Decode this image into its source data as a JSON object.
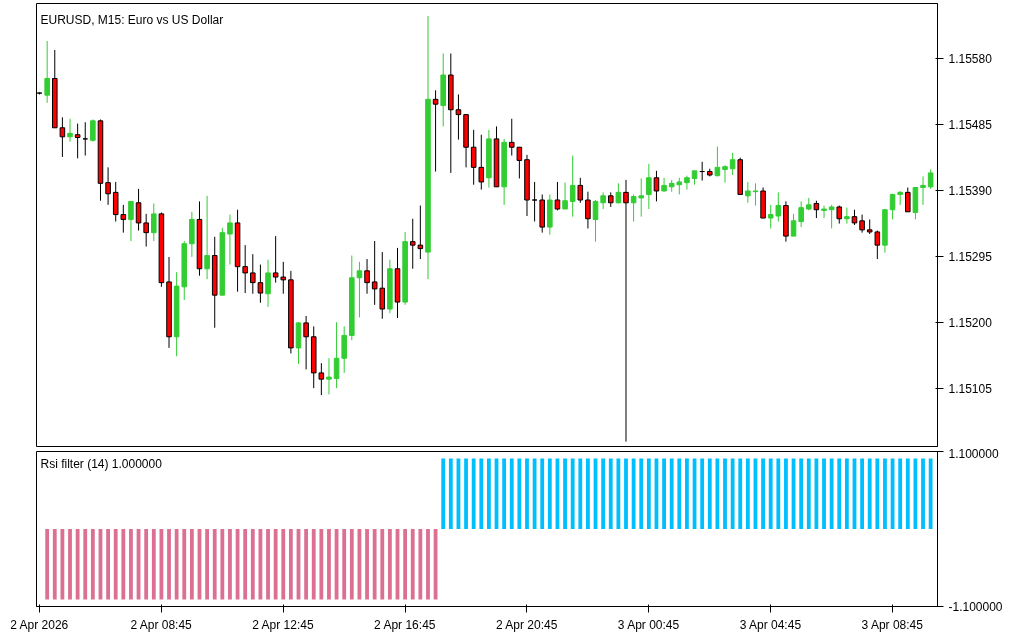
{
  "chart_data": [
    {
      "type": "candlestick",
      "title": "EURUSD, M15:  Euro vs US Dollar",
      "categories": [
        null,
        null,
        null,
        null,
        null,
        null,
        null,
        null,
        null,
        null,
        null,
        null,
        null,
        null,
        null,
        null,
        null,
        null,
        null,
        null,
        null,
        null,
        null,
        null,
        null,
        null,
        null,
        null,
        null,
        null,
        null,
        null,
        null,
        null,
        null,
        null,
        null,
        null,
        null,
        null,
        null,
        null,
        null,
        null,
        null,
        null,
        null,
        null,
        null,
        null,
        null,
        null,
        null,
        null,
        null,
        null,
        null,
        null,
        null,
        null,
        null,
        null,
        null,
        null,
        null,
        null,
        null,
        null,
        null,
        null,
        null,
        null,
        null,
        null,
        null,
        null,
        null,
        null,
        null,
        null,
        null,
        null,
        null,
        null,
        null,
        null,
        null,
        null,
        null,
        null,
        null,
        null,
        null,
        null,
        null,
        null,
        null,
        null,
        null,
        null,
        null,
        null,
        null,
        null,
        null,
        null,
        null,
        null,
        null,
        null,
        null,
        null,
        null,
        null,
        null,
        null,
        null,
        null
      ],
      "ohlc": [
        [
          1.1553,
          1.15531,
          1.15528,
          1.1553
        ],
        [
          1.15527,
          1.15605,
          1.15516,
          1.15551
        ],
        [
          1.15551,
          1.15592,
          1.1548,
          1.1548
        ],
        [
          1.1548,
          1.15495,
          1.15438,
          1.15467
        ],
        [
          1.15467,
          1.15493,
          1.1546,
          1.15472
        ],
        [
          1.1547,
          1.15486,
          1.15436,
          1.15466
        ],
        [
          1.15464,
          1.15488,
          1.1544,
          1.15464
        ],
        [
          1.15462,
          1.15492,
          1.1546,
          1.1549
        ],
        [
          1.1549,
          1.15492,
          1.15375,
          1.154
        ],
        [
          1.15401,
          1.15423,
          1.15369,
          1.15385
        ],
        [
          1.15387,
          1.15402,
          1.15345,
          1.15355
        ],
        [
          1.15355,
          1.15369,
          1.15329,
          1.15348
        ],
        [
          1.15348,
          1.15374,
          1.15317,
          1.15374
        ],
        [
          1.15372,
          1.15392,
          1.15332,
          1.15343
        ],
        [
          1.15343,
          1.15356,
          1.15309,
          1.15329
        ],
        [
          1.15329,
          1.15371,
          1.15317,
          1.15356
        ],
        [
          1.15356,
          1.15358,
          1.15251,
          1.15257
        ],
        [
          1.15258,
          1.15294,
          1.15163,
          1.15179
        ],
        [
          1.15179,
          1.15272,
          1.15151,
          1.15252
        ],
        [
          1.15251,
          1.15317,
          1.15232,
          1.15313
        ],
        [
          1.15313,
          1.15359,
          1.15294,
          1.15348
        ],
        [
          1.15348,
          1.15374,
          1.15267,
          1.15277
        ],
        [
          1.15277,
          1.15382,
          1.15262,
          1.15296
        ],
        [
          1.15296,
          1.15323,
          1.15192,
          1.15239
        ],
        [
          1.15239,
          1.15336,
          1.15239,
          1.15329
        ],
        [
          1.15327,
          1.15355,
          1.15283,
          1.15343
        ],
        [
          1.15343,
          1.15362,
          1.15244,
          1.1528
        ],
        [
          1.1528,
          1.15311,
          1.15242,
          1.15271
        ],
        [
          1.15271,
          1.15298,
          1.15241,
          1.15257
        ],
        [
          1.15257,
          1.15283,
          1.15228,
          1.15242
        ],
        [
          1.15241,
          1.1529,
          1.15222,
          1.15271
        ],
        [
          1.15271,
          1.15324,
          1.15257,
          1.15265
        ],
        [
          1.15265,
          1.15287,
          1.15241,
          1.15261
        ],
        [
          1.15261,
          1.15274,
          1.15155,
          1.15163
        ],
        [
          1.15163,
          1.152,
          1.1514,
          1.15199
        ],
        [
          1.15199,
          1.15209,
          1.15132,
          1.15179
        ],
        [
          1.15179,
          1.15194,
          1.15105,
          1.15127
        ],
        [
          1.15127,
          1.15141,
          1.15095,
          1.15118
        ],
        [
          1.15118,
          1.15148,
          1.15096,
          1.15121
        ],
        [
          1.15119,
          1.152,
          1.15105,
          1.15148
        ],
        [
          1.15148,
          1.15194,
          1.15127,
          1.15181
        ],
        [
          1.15181,
          1.15296,
          1.15174,
          1.15264
        ],
        [
          1.15264,
          1.15287,
          1.15207,
          1.15274
        ],
        [
          1.15274,
          1.15291,
          1.15241,
          1.15257
        ],
        [
          1.15258,
          1.15317,
          1.15225,
          1.15248
        ],
        [
          1.15249,
          1.15301,
          1.15205,
          1.15219
        ],
        [
          1.15219,
          1.1529,
          1.15213,
          1.15277
        ],
        [
          1.15277,
          1.15307,
          1.15206,
          1.15229
        ],
        [
          1.15229,
          1.1533,
          1.15225,
          1.15316
        ],
        [
          1.15316,
          1.15349,
          1.15277,
          1.15311
        ],
        [
          1.15311,
          1.15368,
          1.15291,
          1.15306
        ],
        [
          1.15301,
          1.15641,
          1.15262,
          1.15521
        ],
        [
          1.15521,
          1.15534,
          1.15417,
          1.15514
        ],
        [
          1.15512,
          1.15587,
          1.15482,
          1.15556
        ],
        [
          1.15556,
          1.15587,
          1.15415,
          1.15506
        ],
        [
          1.15506,
          1.15528,
          1.15463,
          1.15499
        ],
        [
          1.15499,
          1.15499,
          1.15423,
          1.15452
        ],
        [
          1.15452,
          1.15477,
          1.15398,
          1.15423
        ],
        [
          1.15423,
          1.1547,
          1.15391,
          1.15402
        ],
        [
          1.15408,
          1.15477,
          1.15394,
          1.15464
        ],
        [
          1.15464,
          1.15482,
          1.15395,
          1.15395
        ],
        [
          1.15395,
          1.15464,
          1.15369,
          1.15459
        ],
        [
          1.15459,
          1.15493,
          1.1544,
          1.15452
        ],
        [
          1.15452,
          1.15452,
          1.15407,
          1.15433
        ],
        [
          1.15434,
          1.15441,
          1.15353,
          1.15376
        ],
        [
          1.15376,
          1.15402,
          1.15345,
          1.15376
        ],
        [
          1.15376,
          1.15384,
          1.15329,
          1.15337
        ],
        [
          1.15337,
          1.15384,
          1.15326,
          1.15376
        ],
        [
          1.15376,
          1.15402,
          1.15361,
          1.15363
        ],
        [
          1.15363,
          1.15401,
          1.15363,
          1.15375
        ],
        [
          1.15374,
          1.1544,
          1.15352,
          1.15397
        ],
        [
          1.15397,
          1.15408,
          1.15372,
          1.15376
        ],
        [
          1.15376,
          1.15388,
          1.15335,
          1.15349
        ],
        [
          1.15348,
          1.15376,
          1.15316,
          1.15374
        ],
        [
          1.15372,
          1.15387,
          1.15363,
          1.15382
        ],
        [
          1.15382,
          1.15387,
          1.15366,
          1.15372
        ],
        [
          1.15372,
          1.154,
          1.15371,
          1.15387
        ],
        [
          1.15387,
          1.15405,
          1.15028,
          1.15372
        ],
        [
          1.15372,
          1.15384,
          1.15345,
          1.15381
        ],
        [
          1.15379,
          1.15407,
          1.15352,
          1.15382
        ],
        [
          1.15384,
          1.15428,
          1.15363,
          1.15408
        ],
        [
          1.15408,
          1.15418,
          1.15374,
          1.15389
        ],
        [
          1.15389,
          1.15408,
          1.15388,
          1.15397
        ],
        [
          1.15395,
          1.15405,
          1.15388,
          1.154
        ],
        [
          1.15398,
          1.15408,
          1.15384,
          1.15402
        ],
        [
          1.15401,
          1.15411,
          1.15391,
          1.15408
        ],
        [
          1.15407,
          1.15418,
          1.15398,
          1.15418
        ],
        [
          1.15417,
          1.15431,
          1.15404,
          1.15417
        ],
        [
          1.15417,
          1.15421,
          1.1541,
          1.15412
        ],
        [
          1.15411,
          1.15453,
          1.1541,
          1.15423
        ],
        [
          1.1542,
          1.15426,
          1.15401,
          1.15424
        ],
        [
          1.15421,
          1.15444,
          1.15412,
          1.15434
        ],
        [
          1.15434,
          1.15437,
          1.15384,
          1.15384
        ],
        [
          1.15382,
          1.15402,
          1.15372,
          1.15389
        ],
        [
          1.15388,
          1.154,
          1.15368,
          1.15389
        ],
        [
          1.15389,
          1.15394,
          1.1535,
          1.1535
        ],
        [
          1.1535,
          1.15369,
          1.15335,
          1.15355
        ],
        [
          1.15353,
          1.15387,
          1.15345,
          1.15368
        ],
        [
          1.15368,
          1.15374,
          1.15316,
          1.15324
        ],
        [
          1.15324,
          1.15356,
          1.15324,
          1.15346
        ],
        [
          1.15345,
          1.15374,
          1.15337,
          1.15365
        ],
        [
          1.15363,
          1.15379,
          1.15361,
          1.15369
        ],
        [
          1.15371,
          1.15375,
          1.1535,
          1.15362
        ],
        [
          1.15361,
          1.15368,
          1.1535,
          1.15363
        ],
        [
          1.15362,
          1.15369,
          1.15335,
          1.15366
        ],
        [
          1.15366,
          1.15368,
          1.15342,
          1.15349
        ],
        [
          1.15349,
          1.15365,
          1.15342,
          1.15352
        ],
        [
          1.15352,
          1.15362,
          1.1534,
          1.15343
        ],
        [
          1.15346,
          1.15355,
          1.15329,
          1.15333
        ],
        [
          1.15333,
          1.15348,
          1.15327,
          1.1533
        ],
        [
          1.1533,
          1.15332,
          1.15291,
          1.15311
        ],
        [
          1.15311,
          1.15363,
          1.153,
          1.15362
        ],
        [
          1.15362,
          1.15385,
          1.15348,
          1.15384
        ],
        [
          1.15384,
          1.15389,
          1.15369,
          1.15387
        ],
        [
          1.15387,
          1.15394,
          1.15359,
          1.15359
        ],
        [
          1.15358,
          1.15394,
          1.15348,
          1.15394
        ],
        [
          1.15394,
          1.1541,
          1.15369,
          1.15397
        ],
        [
          1.15395,
          1.1542,
          1.15392,
          1.15415
        ]
      ],
      "colors": [
        "#000000",
        "#32cd32",
        "#ff0000",
        "#ff0000",
        "#32cd32",
        "#ff0000",
        "#000000",
        "#32cd32",
        "#ff0000",
        "#ff0000",
        "#ff0000",
        "#ff0000",
        "#32cd32",
        "#ff0000",
        "#ff0000",
        "#32cd32",
        "#ff0000",
        "#ff0000",
        "#32cd32",
        "#32cd32",
        "#32cd32",
        "#ff0000",
        "#32cd32",
        "#ff0000",
        "#32cd32",
        "#32cd32",
        "#ff0000",
        "#ff0000",
        "#ff0000",
        "#ff0000",
        "#32cd32",
        "#ff0000",
        "#ff0000",
        "#ff0000",
        "#32cd32",
        "#ff0000",
        "#ff0000",
        "#ff0000",
        "#32cd32",
        "#32cd32",
        "#32cd32",
        "#32cd32",
        "#32cd32",
        "#ff0000",
        "#ff0000",
        "#ff0000",
        "#32cd32",
        "#ff0000",
        "#32cd32",
        "#ff0000",
        "#ff0000",
        "#32cd32",
        "#ff0000",
        "#32cd32",
        "#ff0000",
        "#ff0000",
        "#ff0000",
        "#ff0000",
        "#ff0000",
        "#32cd32",
        "#ff0000",
        "#32cd32",
        "#ff0000",
        "#ff0000",
        "#ff0000",
        "#000000",
        "#ff0000",
        "#32cd32",
        "#ff0000",
        "#32cd32",
        "#32cd32",
        "#ff0000",
        "#ff0000",
        "#32cd32",
        "#32cd32",
        "#ff0000",
        "#32cd32",
        "#ff0000",
        "#32cd32",
        "#32cd32",
        "#32cd32",
        "#ff0000",
        "#32cd32",
        "#32cd32",
        "#32cd32",
        "#32cd32",
        "#32cd32",
        "#000000",
        "#ff0000",
        "#32cd32",
        "#32cd32",
        "#32cd32",
        "#ff0000",
        "#32cd32",
        "#32cd32",
        "#ff0000",
        "#32cd32",
        "#32cd32",
        "#ff0000",
        "#32cd32",
        "#32cd32",
        "#32cd32",
        "#ff0000",
        "#32cd32",
        "#32cd32",
        "#ff0000",
        "#32cd32",
        "#ff0000",
        "#ff0000",
        "#ff0000",
        "#ff0000",
        "#32cd32",
        "#32cd32",
        "#32cd32",
        "#ff0000",
        "#32cd32",
        "#32cd32",
        "#32cd32"
      ],
      "ylim": [
        1.15021,
        1.15659
      ],
      "yticks": [
        {
          "value": 1.15105,
          "label": "1.15105"
        },
        {
          "value": 1.152,
          "label": "1.15200"
        },
        {
          "value": 1.15295,
          "label": "1.15295"
        },
        {
          "value": 1.1539,
          "label": "1.15390"
        },
        {
          "value": 1.15485,
          "label": "1.15485"
        },
        {
          "value": 1.1558,
          "label": "1.15580"
        }
      ],
      "tick_labels": "y"
    },
    {
      "type": "bar",
      "title": "Rsi filter (14) 1.000000",
      "categories": [
        "2 Apr 2026",
        null,
        null,
        null,
        null,
        null,
        null,
        null,
        null,
        null,
        null,
        null,
        null,
        null,
        null,
        null,
        "2 Apr 08:45",
        null,
        null,
        null,
        null,
        null,
        null,
        null,
        null,
        null,
        null,
        null,
        null,
        null,
        null,
        null,
        "2 Apr 12:45",
        null,
        null,
        null,
        null,
        null,
        null,
        null,
        null,
        null,
        null,
        null,
        null,
        null,
        null,
        null,
        "2 Apr 16:45",
        null,
        null,
        null,
        null,
        null,
        null,
        null,
        null,
        null,
        null,
        null,
        null,
        null,
        null,
        null,
        "2 Apr 20:45",
        null,
        null,
        null,
        null,
        null,
        null,
        null,
        null,
        null,
        null,
        null,
        null,
        null,
        null,
        null,
        "3 Apr 00:45",
        null,
        null,
        null,
        null,
        null,
        null,
        null,
        null,
        null,
        null,
        null,
        null,
        null,
        null,
        null,
        "3 Apr 04:45",
        null,
        null,
        null,
        null,
        null,
        null,
        null,
        null,
        null,
        null,
        null,
        null,
        null,
        null,
        null,
        "3 Apr 08:45",
        null,
        null,
        null,
        null,
        null
      ],
      "values": [
        null,
        -1,
        -1,
        -1,
        -1,
        -1,
        -1,
        -1,
        -1,
        -1,
        -1,
        -1,
        -1,
        -1,
        -1,
        -1,
        -1,
        -1,
        -1,
        -1,
        -1,
        -1,
        -1,
        -1,
        -1,
        -1,
        -1,
        -1,
        -1,
        -1,
        -1,
        -1,
        -1,
        -1,
        -1,
        -1,
        -1,
        -1,
        -1,
        -1,
        -1,
        -1,
        -1,
        -1,
        -1,
        -1,
        -1,
        -1,
        -1,
        -1,
        -1,
        -1,
        -1,
        1,
        1,
        1,
        1,
        1,
        1,
        1,
        1,
        1,
        1,
        1,
        1,
        1,
        1,
        1,
        1,
        1,
        1,
        1,
        1,
        1,
        1,
        1,
        1,
        1,
        1,
        1,
        1,
        1,
        1,
        1,
        1,
        1,
        1,
        1,
        1,
        1,
        1,
        1,
        1,
        1,
        1,
        1,
        1,
        1,
        1,
        1,
        1,
        1,
        1,
        1,
        1,
        1,
        1,
        1,
        1,
        1,
        1,
        1,
        1,
        1,
        1,
        1,
        1,
        1
      ],
      "colors": [
        "#db7093",
        "#db7093",
        "#db7093",
        "#db7093",
        "#db7093",
        "#db7093",
        "#db7093",
        "#db7093",
        "#db7093",
        "#db7093",
        "#db7093",
        "#db7093",
        "#db7093",
        "#db7093",
        "#db7093",
        "#db7093",
        "#db7093",
        "#db7093",
        "#db7093",
        "#db7093",
        "#db7093",
        "#db7093",
        "#db7093",
        "#db7093",
        "#db7093",
        "#db7093",
        "#db7093",
        "#db7093",
        "#db7093",
        "#db7093",
        "#db7093",
        "#db7093",
        "#db7093",
        "#db7093",
        "#db7093",
        "#db7093",
        "#db7093",
        "#db7093",
        "#db7093",
        "#db7093",
        "#db7093",
        "#db7093",
        "#db7093",
        "#db7093",
        "#db7093",
        "#db7093",
        "#db7093",
        "#db7093",
        "#db7093",
        "#db7093",
        "#db7093",
        "#db7093",
        "#db7093",
        "#00bfff",
        "#00bfff",
        "#00bfff",
        "#00bfff",
        "#00bfff",
        "#00bfff",
        "#00bfff",
        "#00bfff",
        "#00bfff",
        "#00bfff",
        "#00bfff",
        "#00bfff",
        "#00bfff",
        "#00bfff",
        "#00bfff",
        "#00bfff",
        "#00bfff",
        "#00bfff",
        "#00bfff",
        "#00bfff",
        "#00bfff",
        "#00bfff",
        "#00bfff",
        "#00bfff",
        "#00bfff",
        "#00bfff",
        "#00bfff",
        "#00bfff",
        "#00bfff",
        "#00bfff",
        "#00bfff",
        "#00bfff",
        "#00bfff",
        "#00bfff",
        "#00bfff",
        "#00bfff",
        "#00bfff",
        "#00bfff",
        "#00bfff",
        "#00bfff",
        "#00bfff",
        "#00bfff",
        "#00bfff",
        "#00bfff",
        "#00bfff",
        "#00bfff",
        "#00bfff",
        "#00bfff",
        "#00bfff",
        "#00bfff",
        "#00bfff",
        "#00bfff",
        "#00bfff",
        "#00bfff",
        "#00bfff",
        "#00bfff",
        "#00bfff",
        "#00bfff",
        "#00bfff",
        "#00bfff",
        "#00bfff",
        "#00bfff",
        "#00bfff",
        "#00bfff",
        "#00bfff"
      ],
      "ylim": [
        -1.1,
        1.1
      ],
      "yticks": [
        {
          "value": 1.1,
          "label": "1.100000"
        },
        {
          "value": -1.1,
          "label": "-1.100000"
        }
      ]
    }
  ]
}
